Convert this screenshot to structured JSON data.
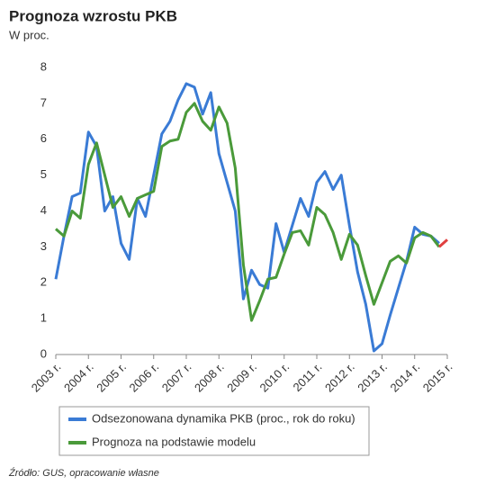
{
  "chart_data": {
    "type": "line",
    "title": "Prognoza wzrostu PKB",
    "subtitle": "W proc.",
    "source": "Źródło: GUS, opracowanie własne",
    "x": [
      2003,
      2003.25,
      2003.5,
      2003.75,
      2004,
      2004.25,
      2004.5,
      2004.75,
      2005,
      2005.25,
      2005.5,
      2005.75,
      2006,
      2006.25,
      2006.5,
      2006.75,
      2007,
      2007.25,
      2007.5,
      2007.75,
      2008,
      2008.25,
      2008.5,
      2008.75,
      2009,
      2009.25,
      2009.5,
      2009.75,
      2010,
      2010.25,
      2010.5,
      2010.75,
      2011,
      2011.25,
      2011.5,
      2011.75,
      2012,
      2012.25,
      2012.5,
      2012.75,
      2013,
      2013.25,
      2013.5,
      2013.75,
      2014,
      2014.25,
      2014.5,
      2014.75,
      2015
    ],
    "series": [
      {
        "name": "Odsezonowana dynamika PKB (proc., rok do roku)",
        "color": "#3a7bd5",
        "values": [
          2.1,
          3.3,
          4.4,
          4.5,
          6.2,
          5.8,
          4.0,
          4.4,
          3.1,
          2.65,
          4.35,
          3.85,
          5.0,
          6.15,
          6.5,
          7.1,
          7.55,
          7.45,
          6.7,
          7.3,
          5.6,
          4.8,
          4.0,
          1.55,
          2.35,
          1.95,
          1.85,
          3.65,
          2.85,
          3.6,
          4.35,
          3.85,
          4.8,
          5.1,
          4.6,
          5.0,
          3.6,
          2.3,
          1.4,
          0.1,
          0.3,
          1.1,
          1.85,
          2.6,
          3.55,
          3.35,
          3.3,
          3.1,
          null
        ]
      },
      {
        "name": "Prognoza na podstawie modelu",
        "color": "#4a9a3a",
        "values": [
          3.5,
          3.3,
          4.0,
          3.8,
          5.3,
          5.9,
          5.0,
          4.1,
          4.4,
          3.85,
          4.35,
          4.45,
          4.55,
          5.8,
          5.95,
          6.0,
          6.75,
          7.0,
          6.5,
          6.25,
          6.9,
          6.45,
          5.2,
          2.5,
          0.95,
          1.5,
          2.1,
          2.15,
          2.8,
          3.4,
          3.45,
          3.05,
          4.1,
          3.9,
          3.4,
          2.65,
          3.35,
          3.05,
          2.2,
          1.4,
          2.0,
          2.6,
          2.75,
          2.55,
          3.25,
          3.4,
          3.3,
          3.0,
          null
        ]
      },
      {
        "color": "#e04040",
        "values": [
          null,
          null,
          null,
          null,
          null,
          null,
          null,
          null,
          null,
          null,
          null,
          null,
          null,
          null,
          null,
          null,
          null,
          null,
          null,
          null,
          null,
          null,
          null,
          null,
          null,
          null,
          null,
          null,
          null,
          null,
          null,
          null,
          null,
          null,
          null,
          null,
          null,
          null,
          null,
          null,
          null,
          null,
          null,
          null,
          null,
          null,
          null,
          3.0,
          3.2
        ]
      }
    ],
    "xlim": [
      2003,
      2015
    ],
    "xticks": [
      {
        "value": 2003,
        "label": "2003 r."
      },
      {
        "value": 2004,
        "label": "2004 r."
      },
      {
        "value": 2005,
        "label": "2005 r."
      },
      {
        "value": 2006,
        "label": "2006 r."
      },
      {
        "value": 2007,
        "label": "2007 r."
      },
      {
        "value": 2008,
        "label": "2008 r."
      },
      {
        "value": 2009,
        "label": "2009 r."
      },
      {
        "value": 2010,
        "label": "2010 r."
      },
      {
        "value": 2011,
        "label": "2011 r."
      },
      {
        "value": 2012,
        "label": "2012 r."
      },
      {
        "value": 2013,
        "label": "2013 r."
      },
      {
        "value": 2014,
        "label": "2014 r."
      },
      {
        "value": 2015,
        "label": "2015 r."
      }
    ],
    "ylim": [
      0,
      8
    ],
    "yticks": [
      0,
      1,
      2,
      3,
      4,
      5,
      6,
      7,
      8
    ]
  }
}
